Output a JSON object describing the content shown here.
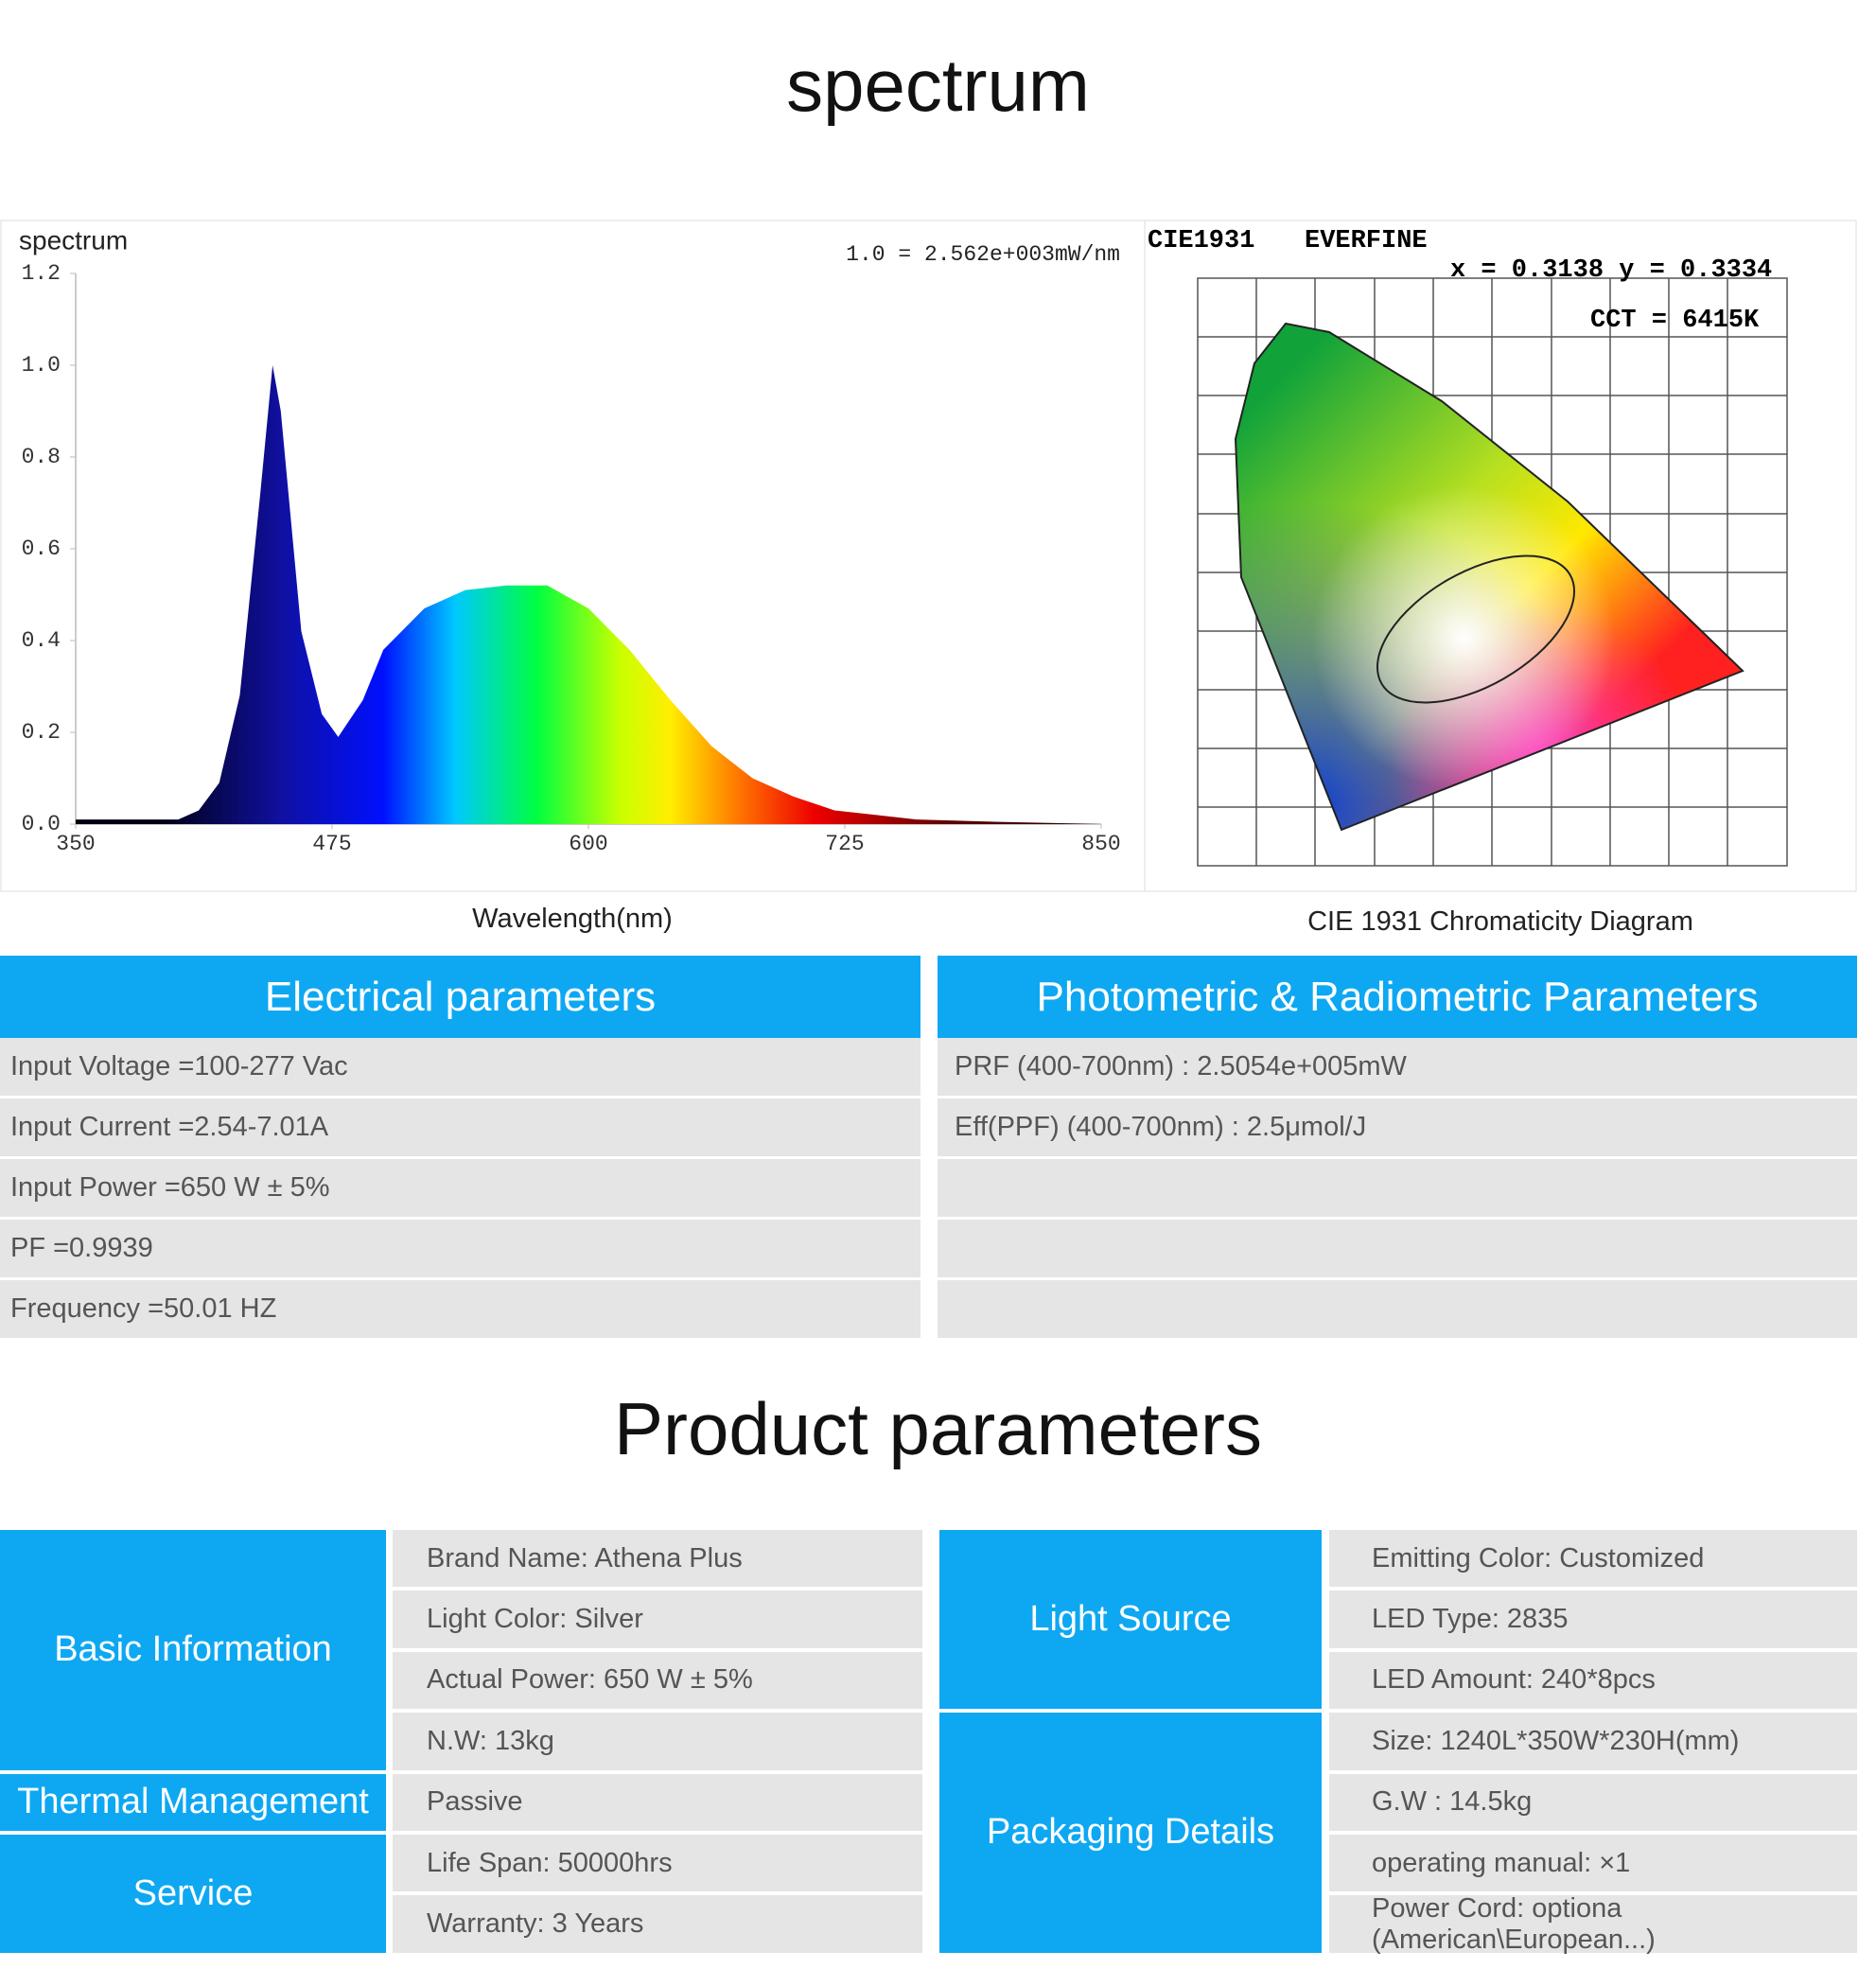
{
  "header": {
    "title": "spectrum"
  },
  "chart_data": {
    "type": "area",
    "title": "spectrum",
    "annotation": "1.0 = 2.562e+003mW/nm",
    "x_label": "Wavelength(nm)",
    "x": [
      350,
      370,
      390,
      400,
      410,
      420,
      430,
      440,
      446,
      450,
      460,
      470,
      478,
      490,
      500,
      520,
      540,
      560,
      580,
      600,
      620,
      640,
      660,
      680,
      700,
      720,
      740,
      760,
      800,
      850
    ],
    "values": [
      0.01,
      0.01,
      0.01,
      0.01,
      0.03,
      0.09,
      0.28,
      0.72,
      1.0,
      0.9,
      0.42,
      0.24,
      0.19,
      0.27,
      0.38,
      0.47,
      0.51,
      0.52,
      0.52,
      0.47,
      0.38,
      0.27,
      0.17,
      0.1,
      0.06,
      0.03,
      0.02,
      0.01,
      0.005,
      0
    ],
    "xlim": [
      350,
      850
    ],
    "ylim": [
      0,
      1.2
    ],
    "xticks": [
      350,
      475,
      600,
      725,
      850
    ],
    "yticks": [
      {
        "value": 0,
        "label": "0.0"
      },
      {
        "value": 0.2,
        "label": "0.2"
      },
      {
        "value": 0.4,
        "label": "0.4"
      },
      {
        "value": 0.6,
        "label": "0.6"
      },
      {
        "value": 0.8,
        "label": "0.8"
      },
      {
        "value": 1,
        "label": "1.0"
      },
      {
        "value": 1.2,
        "label": "1.2"
      }
    ],
    "grid": false
  },
  "cie": {
    "title": "CIE1931",
    "brand": "EVERFINE",
    "coords": "x = 0.3138 y = 0.3334",
    "cct": "CCT = 6415K",
    "caption": "CIE 1931 Chromaticity Diagram"
  },
  "electrical": {
    "title": "Electrical parameters",
    "rows": [
      "Input Voltage  =100-277 Vac",
      "Input Current =2.54-7.01A",
      "Input Power  =650 W ± 5%",
      "PF  =0.9939",
      "Frequency =50.01 HZ"
    ]
  },
  "photometric": {
    "title": "Photometric & Radiometric Parameters",
    "rows": [
      "PRF  (400-700nm)  :  2.5054e+005mW",
      "Eff(PPF)  (400-700nm)  :  2.5μmol/J"
    ]
  },
  "product": {
    "title": "Product parameters",
    "left": [
      {
        "label": "Basic Information",
        "items": [
          "Brand Name:  Athena Plus",
          "Light  Color:  Silver",
          "Actual Power:  650 W ± 5%",
          "N.W:  13kg"
        ]
      },
      {
        "label": "Thermal Management",
        "items": [
          "Passive"
        ]
      },
      {
        "label": "Service",
        "items": [
          "Life Span:  50000hrs",
          "Warranty:  3 Years"
        ]
      }
    ],
    "right": [
      {
        "label": "Light Source",
        "items": [
          "Emitting Color:  Customized",
          "LED Type:  2835",
          "LED Amount:  240*8pcs"
        ]
      },
      {
        "label": "Packaging Details",
        "items": [
          "Size:  1240L*350W*230H(mm)",
          "G.W  :  14.5kg",
          "operating manual:  ×1",
          "Power Cord:  optiona  (American\\European...)"
        ]
      }
    ]
  }
}
